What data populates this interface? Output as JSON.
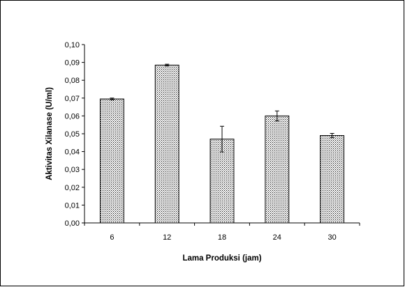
{
  "chart_data": {
    "type": "bar",
    "title": "",
    "xlabel": "Lama Produksi (jam)",
    "ylabel": "Aktivitas Xilanase (U/ml)",
    "categories": [
      "6",
      "12",
      "18",
      "24",
      "30"
    ],
    "values": [
      0.0695,
      0.0885,
      0.047,
      0.06,
      0.049
    ],
    "errors": [
      0.0005,
      0.0005,
      0.0072,
      0.0028,
      0.0012
    ],
    "ylim": [
      0,
      0.1
    ],
    "yticks": [
      0,
      0.01,
      0.02,
      0.03,
      0.04,
      0.05,
      0.06,
      0.07,
      0.08,
      0.09,
      0.1
    ],
    "ytick_labels": [
      "0,00",
      "0,01",
      "0,02",
      "0,03",
      "0,04",
      "0,05",
      "0,06",
      "0,07",
      "0,08",
      "0,09",
      "0,10"
    ],
    "grid": false,
    "legend": "none",
    "bar_fill": "dotted"
  }
}
